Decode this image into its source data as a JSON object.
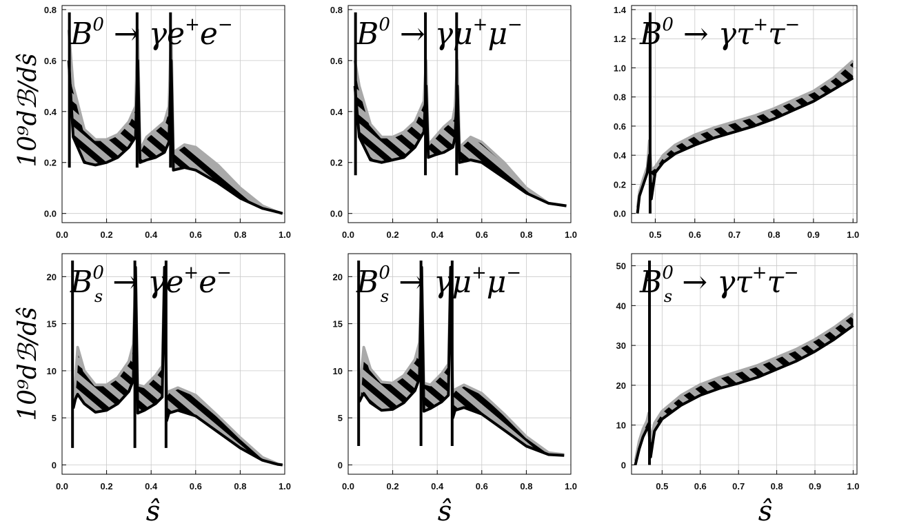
{
  "chart_data": [
    {
      "id": "b0-ee",
      "type": "area",
      "title": {
        "base": "B",
        "sup": "0",
        "sub": "",
        "arrow": "→",
        "final": "γe",
        "final_sup1": "+",
        "final_mid": "e",
        "final_sup2": "−"
      },
      "xlim": [
        0.0,
        1.0
      ],
      "ylim": [
        0.0,
        0.8
      ],
      "xticks": [
        0.0,
        0.2,
        0.4,
        0.6,
        0.8,
        1.0
      ],
      "xtick_labels": [
        "0.0",
        "0.2",
        "0.4",
        "0.6",
        "0.8",
        "1.0"
      ],
      "yticks": [
        0.0,
        0.2,
        0.4,
        0.6,
        0.8
      ],
      "ytick_labels": [
        "0.0",
        "0.2",
        "0.4",
        "0.6",
        "0.8"
      ],
      "grid": true,
      "peaks": [
        0.033,
        0.337,
        0.487
      ],
      "series": [
        {
          "role": "upper",
          "x": [
            0.03,
            0.05,
            0.1,
            0.15,
            0.2,
            0.25,
            0.3,
            0.33,
            0.34,
            0.35,
            0.38,
            0.42,
            0.46,
            0.48,
            0.49,
            0.5,
            0.55,
            0.6,
            0.7,
            0.8,
            0.9,
            0.97,
            0.99
          ],
          "y": [
            0.72,
            0.5,
            0.33,
            0.29,
            0.29,
            0.31,
            0.36,
            0.42,
            0.72,
            0.25,
            0.3,
            0.33,
            0.36,
            0.42,
            0.72,
            0.24,
            0.27,
            0.26,
            0.19,
            0.1,
            0.03,
            0.005,
            0.0
          ]
        },
        {
          "role": "lower",
          "x": [
            0.03,
            0.05,
            0.1,
            0.15,
            0.2,
            0.25,
            0.3,
            0.33,
            0.34,
            0.35,
            0.38,
            0.42,
            0.46,
            0.48,
            0.49,
            0.5,
            0.55,
            0.6,
            0.7,
            0.8,
            0.9,
            0.97,
            0.99
          ],
          "y": [
            0.6,
            0.3,
            0.2,
            0.19,
            0.2,
            0.22,
            0.26,
            0.3,
            0.6,
            0.2,
            0.21,
            0.22,
            0.24,
            0.28,
            0.6,
            0.17,
            0.18,
            0.17,
            0.12,
            0.06,
            0.02,
            0.005,
            0.0
          ]
        }
      ]
    },
    {
      "id": "b0-mumu",
      "type": "area",
      "title": {
        "base": "B",
        "sup": "0",
        "sub": "",
        "arrow": "→",
        "final": "γμ",
        "final_sup1": "+",
        "final_mid": "μ",
        "final_sup2": "−"
      },
      "xlim": [
        0.0,
        1.0
      ],
      "ylim": [
        0.0,
        0.8
      ],
      "xticks": [
        0.0,
        0.2,
        0.4,
        0.6,
        0.8,
        1.0
      ],
      "xtick_labels": [
        "0.0",
        "0.2",
        "0.4",
        "0.6",
        "0.8",
        "1.0"
      ],
      "yticks": [
        0.0,
        0.2,
        0.4,
        0.6,
        0.8
      ],
      "ytick_labels": [
        "0.0",
        "0.2",
        "0.4",
        "0.6",
        "0.8"
      ],
      "grid": true,
      "peaks": [
        0.033,
        0.347,
        0.487
      ],
      "series": [
        {
          "role": "upper",
          "x": [
            0.03,
            0.05,
            0.1,
            0.15,
            0.2,
            0.25,
            0.3,
            0.34,
            0.35,
            0.36,
            0.39,
            0.43,
            0.47,
            0.48,
            0.49,
            0.5,
            0.55,
            0.6,
            0.7,
            0.8,
            0.9,
            0.98
          ],
          "y": [
            0.6,
            0.5,
            0.35,
            0.3,
            0.3,
            0.32,
            0.36,
            0.44,
            0.6,
            0.27,
            0.3,
            0.34,
            0.37,
            0.42,
            0.6,
            0.26,
            0.3,
            0.28,
            0.2,
            0.1,
            0.04,
            0.03
          ]
        },
        {
          "role": "lower",
          "x": [
            0.03,
            0.05,
            0.1,
            0.15,
            0.2,
            0.25,
            0.3,
            0.34,
            0.35,
            0.36,
            0.39,
            0.43,
            0.47,
            0.48,
            0.49,
            0.5,
            0.55,
            0.6,
            0.7,
            0.8,
            0.9,
            0.98
          ],
          "y": [
            0.5,
            0.3,
            0.21,
            0.2,
            0.21,
            0.22,
            0.26,
            0.32,
            0.5,
            0.22,
            0.23,
            0.24,
            0.26,
            0.3,
            0.5,
            0.2,
            0.21,
            0.2,
            0.14,
            0.08,
            0.04,
            0.03
          ]
        }
      ]
    },
    {
      "id": "b0-tautau",
      "type": "area",
      "title": {
        "base": "B",
        "sup": "0",
        "sub": "",
        "arrow": "→",
        "final": "γτ",
        "final_sup1": "+",
        "final_mid": "τ",
        "final_sup2": "−"
      },
      "xlim": [
        0.44,
        1.01
      ],
      "ylim": [
        0.0,
        1.4
      ],
      "xticks": [
        0.5,
        0.6,
        0.7,
        0.8,
        0.9,
        1.0
      ],
      "xtick_labels": [
        "0.5",
        "0.6",
        "0.7",
        "0.8",
        "0.9",
        "1.0"
      ],
      "yticks": [
        0.0,
        0.2,
        0.4,
        0.6,
        0.8,
        1.0,
        1.2,
        1.4
      ],
      "ytick_labels": [
        "0.0",
        "0.2",
        "0.4",
        "0.6",
        "0.8",
        "1.0",
        "1.2",
        "1.4"
      ],
      "grid": true,
      "peaks": [
        0.487
      ],
      "series": [
        {
          "role": "upper",
          "x": [
            0.455,
            0.46,
            0.47,
            0.48,
            0.485,
            0.49,
            0.5,
            0.52,
            0.55,
            0.6,
            0.65,
            0.7,
            0.75,
            0.8,
            0.85,
            0.9,
            0.95,
            1.0
          ],
          "y": [
            0.04,
            0.15,
            0.24,
            0.32,
            0.5,
            0.3,
            0.32,
            0.4,
            0.47,
            0.54,
            0.59,
            0.63,
            0.67,
            0.72,
            0.78,
            0.84,
            0.93,
            1.05
          ]
        },
        {
          "role": "lower",
          "x": [
            0.455,
            0.46,
            0.47,
            0.48,
            0.485,
            0.49,
            0.5,
            0.52,
            0.55,
            0.6,
            0.65,
            0.7,
            0.75,
            0.8,
            0.85,
            0.9,
            0.95,
            1.0
          ],
          "y": [
            0.0,
            0.12,
            0.2,
            0.28,
            0.4,
            0.1,
            0.28,
            0.35,
            0.41,
            0.47,
            0.52,
            0.56,
            0.6,
            0.65,
            0.71,
            0.77,
            0.85,
            0.93
          ]
        }
      ]
    },
    {
      "id": "bs-ee",
      "type": "area",
      "title": {
        "base": "B",
        "sup": "0",
        "sub": "s",
        "arrow": "→",
        "final": "γe",
        "final_sup1": "+",
        "final_mid": "e",
        "final_sup2": "−"
      },
      "xlim": [
        0.0,
        1.0
      ],
      "ylim": [
        0.0,
        22.0
      ],
      "xticks": [
        0.0,
        0.2,
        0.4,
        0.6,
        0.8,
        1.0
      ],
      "xtick_labels": [
        "0.0",
        "0.2",
        "0.4",
        "0.6",
        "0.8",
        "1.0"
      ],
      "yticks": [
        0,
        5,
        10,
        15,
        20
      ],
      "ytick_labels": [
        "0",
        "5",
        "10",
        "15",
        "20"
      ],
      "grid": true,
      "peaks": [
        0.047,
        0.327,
        0.467
      ],
      "series": [
        {
          "role": "upper",
          "x": [
            0.05,
            0.06,
            0.07,
            0.1,
            0.15,
            0.2,
            0.25,
            0.3,
            0.32,
            0.33,
            0.34,
            0.37,
            0.42,
            0.45,
            0.46,
            0.47,
            0.48,
            0.52,
            0.6,
            0.7,
            0.8,
            0.9,
            0.97,
            0.99
          ],
          "y": [
            6.5,
            9.0,
            12.5,
            10.0,
            8.5,
            8.5,
            9.3,
            11.0,
            12.8,
            21.0,
            8.5,
            8.3,
            9.5,
            10.5,
            21.0,
            7.5,
            7.8,
            8.2,
            7.4,
            5.2,
            2.9,
            0.8,
            0.1,
            0.0
          ]
        },
        {
          "role": "lower",
          "x": [
            0.05,
            0.06,
            0.07,
            0.1,
            0.15,
            0.2,
            0.25,
            0.3,
            0.32,
            0.33,
            0.34,
            0.37,
            0.42,
            0.45,
            0.46,
            0.47,
            0.48,
            0.52,
            0.6,
            0.7,
            0.8,
            0.9,
            0.97,
            0.99
          ],
          "y": [
            6.0,
            7.0,
            7.5,
            6.5,
            5.6,
            5.8,
            6.5,
            7.8,
            9.0,
            21.0,
            5.5,
            5.8,
            6.5,
            7.2,
            21.0,
            4.7,
            5.5,
            5.8,
            5.2,
            3.5,
            1.8,
            0.5,
            0.05,
            0.0
          ]
        }
      ]
    },
    {
      "id": "bs-mumu",
      "type": "area",
      "title": {
        "base": "B",
        "sup": "0",
        "sub": "s",
        "arrow": "→",
        "final": "γμ",
        "final_sup1": "+",
        "final_mid": "μ",
        "final_sup2": "−"
      },
      "xlim": [
        0.0,
        1.0
      ],
      "ylim": [
        0.0,
        22.0
      ],
      "xticks": [
        0.0,
        0.2,
        0.4,
        0.6,
        0.8,
        1.0
      ],
      "xtick_labels": [
        "0.0",
        "0.2",
        "0.4",
        "0.6",
        "0.8",
        "1.0"
      ],
      "yticks": [
        0,
        5,
        10,
        15,
        20
      ],
      "ytick_labels": [
        "0",
        "5",
        "10",
        "15",
        "20"
      ],
      "grid": true,
      "peaks": [
        0.047,
        0.327,
        0.467
      ],
      "series": [
        {
          "role": "upper",
          "x": [
            0.05,
            0.06,
            0.07,
            0.1,
            0.15,
            0.2,
            0.25,
            0.3,
            0.32,
            0.33,
            0.34,
            0.37,
            0.42,
            0.45,
            0.46,
            0.47,
            0.48,
            0.52,
            0.6,
            0.7,
            0.8,
            0.9,
            0.97
          ],
          "y": [
            7.0,
            10.0,
            12.5,
            10.2,
            8.8,
            8.7,
            9.5,
            11.2,
            13.0,
            21.0,
            8.7,
            8.5,
            9.7,
            10.7,
            21.0,
            7.7,
            8.0,
            8.5,
            7.6,
            5.4,
            3.0,
            1.3,
            1.1
          ]
        },
        {
          "role": "lower",
          "x": [
            0.05,
            0.06,
            0.07,
            0.1,
            0.15,
            0.2,
            0.25,
            0.3,
            0.32,
            0.33,
            0.34,
            0.37,
            0.42,
            0.45,
            0.46,
            0.47,
            0.48,
            0.52,
            0.6,
            0.7,
            0.8,
            0.9,
            0.97
          ],
          "y": [
            6.7,
            7.2,
            7.6,
            6.6,
            5.8,
            5.9,
            6.6,
            7.9,
            9.2,
            21.0,
            5.7,
            6.0,
            6.7,
            7.4,
            21.0,
            5.0,
            5.8,
            6.1,
            5.4,
            3.7,
            2.0,
            1.1,
            1.0
          ]
        }
      ]
    },
    {
      "id": "bs-tautau",
      "type": "area",
      "title": {
        "base": "B",
        "sup": "0",
        "sub": "s",
        "arrow": "→",
        "final": "γτ",
        "final_sup1": "+",
        "final_mid": "τ",
        "final_sup2": "−"
      },
      "xlim": [
        0.42,
        1.01
      ],
      "ylim": [
        0.0,
        52.0
      ],
      "xticks": [
        0.5,
        0.6,
        0.7,
        0.8,
        0.9,
        1.0
      ],
      "xtick_labels": [
        "0.5",
        "0.6",
        "0.7",
        "0.8",
        "0.9",
        "1.0"
      ],
      "yticks": [
        0,
        10,
        20,
        30,
        40,
        50
      ],
      "ytick_labels": [
        "0",
        "10",
        "20",
        "30",
        "40",
        "50"
      ],
      "grid": true,
      "peaks": [
        0.467
      ],
      "series": [
        {
          "role": "upper",
          "x": [
            0.43,
            0.44,
            0.45,
            0.46,
            0.465,
            0.47,
            0.48,
            0.5,
            0.55,
            0.6,
            0.65,
            0.7,
            0.75,
            0.8,
            0.85,
            0.9,
            0.95,
            1.0
          ],
          "y": [
            1.0,
            6.0,
            9.0,
            11.0,
            13.0,
            6.0,
            10.5,
            13.5,
            17.5,
            20.2,
            22.0,
            23.5,
            25.0,
            27.0,
            29.0,
            31.5,
            34.5,
            38.0
          ]
        },
        {
          "role": "lower",
          "x": [
            0.43,
            0.44,
            0.45,
            0.46,
            0.465,
            0.47,
            0.48,
            0.5,
            0.55,
            0.6,
            0.65,
            0.7,
            0.75,
            0.8,
            0.85,
            0.9,
            0.95,
            1.0
          ],
          "y": [
            0.0,
            4.0,
            7.0,
            9.0,
            10.0,
            2.0,
            8.5,
            11.5,
            15.0,
            17.5,
            19.2,
            20.5,
            22.0,
            24.0,
            26.0,
            28.5,
            31.5,
            35.0
          ]
        }
      ]
    }
  ],
  "axes_text": {
    "ylabel": "10⁹dℬ/dŝ",
    "xlabel": "ŝ"
  },
  "colors": {
    "band": "#a9a9a9",
    "hatch": "#000000",
    "grid": "#c8c8c8",
    "frame": "#000000"
  }
}
